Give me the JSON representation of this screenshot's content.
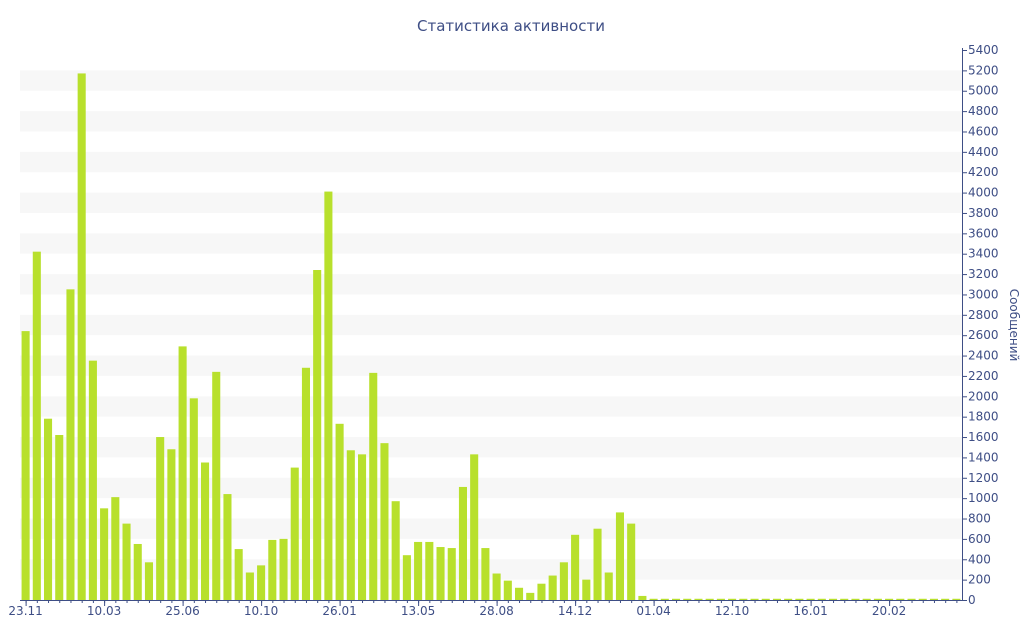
{
  "chart_data": {
    "type": "bar",
    "title": "Статистика активности",
    "ylabel": "Сообщений",
    "xlabel": "",
    "ylim": [
      0,
      5400
    ],
    "y_ticks": [
      0,
      200,
      400,
      600,
      800,
      1000,
      1200,
      1400,
      1600,
      1800,
      2000,
      2200,
      2400,
      2600,
      2800,
      3000,
      3200,
      3400,
      3600,
      3800,
      4000,
      4200,
      4400,
      4600,
      4800,
      5000,
      5200,
      5400
    ],
    "y_axis_position": "right",
    "grid": "horizontal alternating bands",
    "legend": "none",
    "x_tick_labels": [
      "23.11",
      "10.03",
      "25.06",
      "10.10",
      "26.01",
      "13.05",
      "28.08",
      "14.12",
      "01.04",
      "12.10",
      "16.01",
      "20.02"
    ],
    "x_tick_bar_index": [
      0,
      7,
      14,
      21,
      28,
      35,
      42,
      49,
      56,
      63,
      70,
      77
    ],
    "bar_color": "#b8e02c",
    "band_color": "#f7f7f7",
    "axis_color": "#3e4e85",
    "values": [
      2640,
      3420,
      1780,
      1620,
      3050,
      5170,
      2350,
      900,
      1010,
      750,
      550,
      370,
      1600,
      1480,
      2490,
      1980,
      1350,
      2240,
      1040,
      500,
      270,
      340,
      590,
      600,
      1300,
      2280,
      3240,
      4010,
      1730,
      1470,
      1430,
      2230,
      1540,
      970,
      440,
      570,
      570,
      520,
      510,
      1110,
      1430,
      510,
      260,
      190,
      120,
      70,
      160,
      240,
      370,
      640,
      200,
      700,
      270,
      860,
      750,
      40,
      12,
      12,
      12,
      12,
      12,
      12,
      12,
      12,
      12,
      12,
      12,
      12,
      12,
      12,
      12,
      12,
      12,
      12,
      12,
      12,
      12,
      12,
      12,
      12,
      12,
      12,
      12,
      12
    ]
  }
}
